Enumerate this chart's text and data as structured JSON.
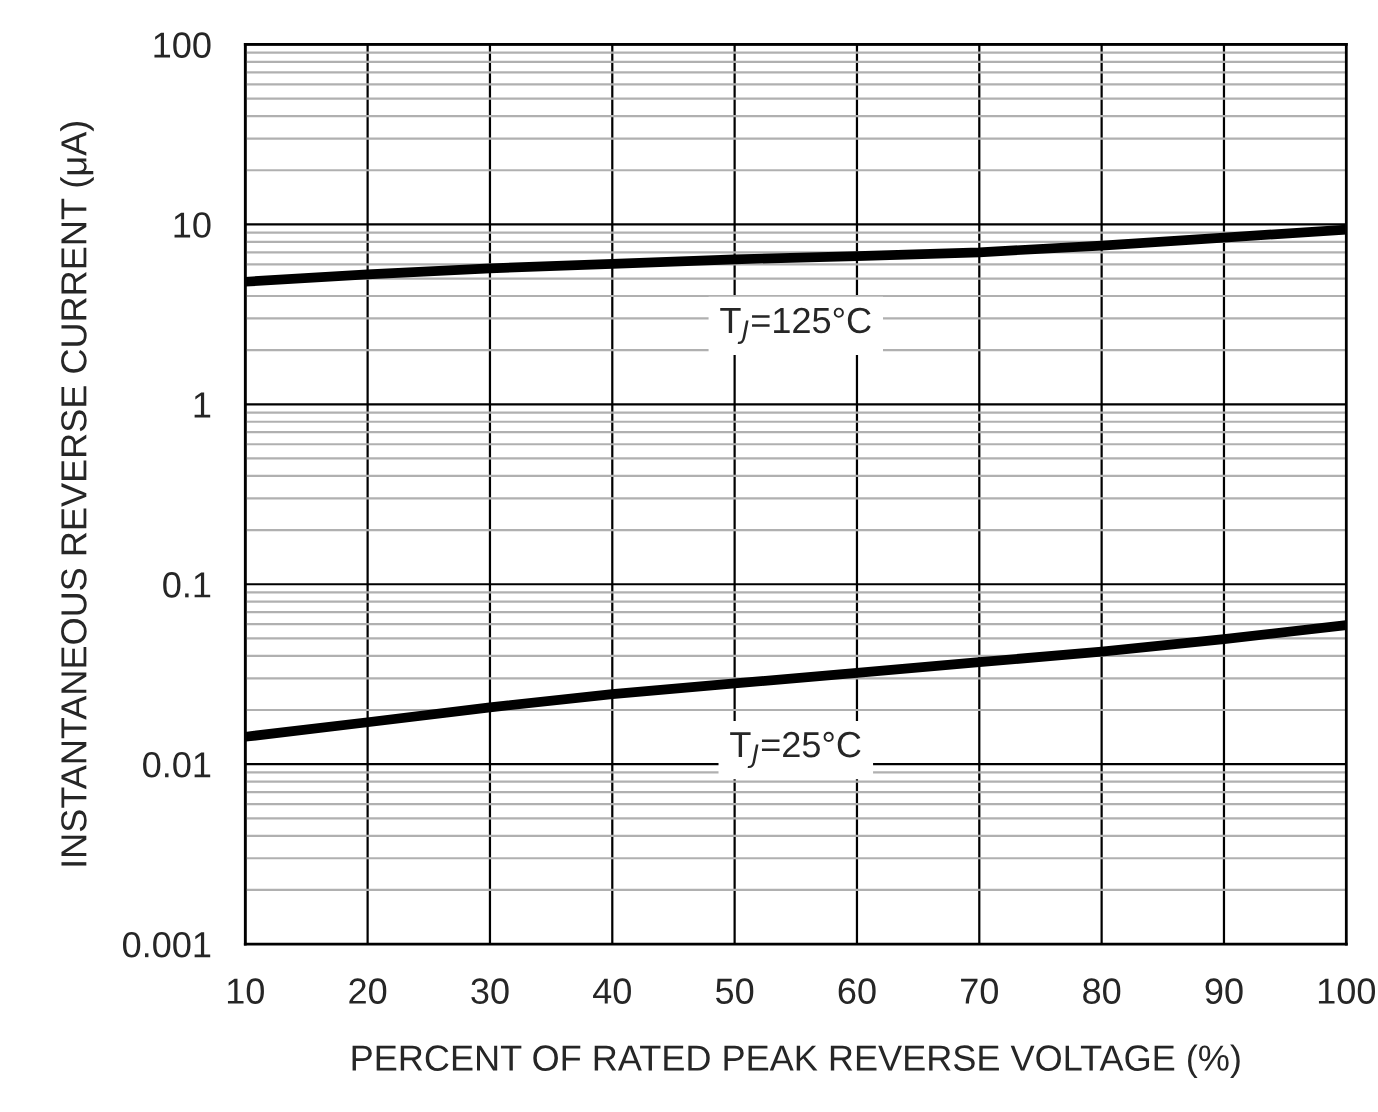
{
  "chart_data": {
    "type": "line",
    "xlabel": "PERCENT OF RATED PEAK REVERSE VOLTAGE (%)",
    "ylabel": "INSTANTANEOUS REVERSE CURRENT (μA)",
    "x": [
      10,
      20,
      30,
      40,
      50,
      60,
      70,
      80,
      90,
      100
    ],
    "series": [
      {
        "name": "T$_{J}$=125°C",
        "color": "#000000",
        "values": [
          4.8,
          5.27,
          5.7,
          6.03,
          6.4,
          6.67,
          7.0,
          7.63,
          8.45,
          9.35
        ]
      },
      {
        "name": "T$_{J}$=25°C",
        "color": "#000000",
        "values": [
          0.0142,
          0.0171,
          0.0207,
          0.0245,
          0.0281,
          0.0322,
          0.0369,
          0.0422,
          0.0495,
          0.0593
        ]
      }
    ],
    "log": "y",
    "xlim": [
      10,
      100
    ],
    "ylim": [
      0.001,
      100
    ],
    "xticks": [
      10,
      20,
      30,
      40,
      50,
      60,
      70,
      80,
      90,
      100
    ],
    "yticks": [
      0.001,
      0.01,
      0.1,
      1,
      10,
      100
    ],
    "grid": true,
    "legend": false,
    "marker": "none",
    "line_style": "solid"
  }
}
